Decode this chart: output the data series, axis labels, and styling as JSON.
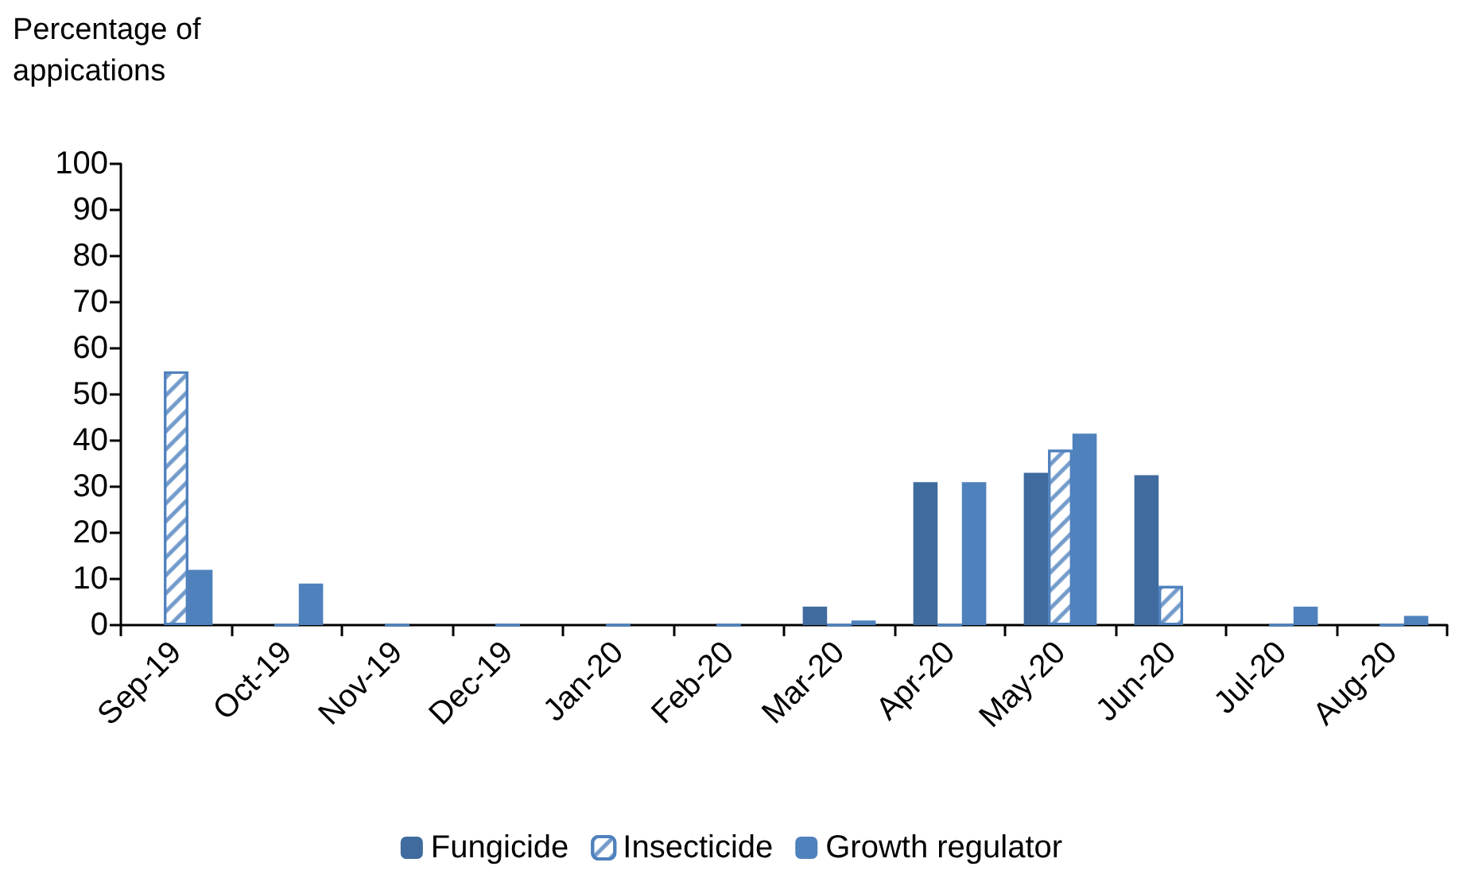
{
  "chart_data": {
    "type": "bar",
    "ylabel": "Percentage of appications",
    "categories": [
      "Sep-19",
      "Oct-19",
      "Nov-19",
      "Dec-19",
      "Jan-20",
      "Feb-20",
      "Mar-20",
      "Apr-20",
      "May-20",
      "Jun-20",
      "Jul-20",
      "Aug-20"
    ],
    "series": [
      {
        "name": "Fungicide",
        "color": "#3f6b9e",
        "values": [
          0,
          0,
          0,
          0,
          0,
          0,
          4,
          31,
          33,
          32.5,
          0,
          0
        ]
      },
      {
        "name": "Insecticide",
        "color": "#4f81bd",
        "values": [
          55,
          0,
          0,
          0,
          0,
          0,
          0,
          0,
          38,
          8.5,
          0,
          0
        ]
      },
      {
        "name": "Growth regulator",
        "color": "#4f81bd",
        "values": [
          12,
          9,
          0,
          0,
          0,
          0,
          1,
          31,
          41.5,
          0,
          4,
          2
        ]
      }
    ],
    "ylim": [
      0,
      100
    ],
    "yticks": [
      0,
      10,
      20,
      30,
      40,
      50,
      60,
      70,
      80,
      90,
      100
    ],
    "grid": false,
    "legend": "bottom"
  }
}
